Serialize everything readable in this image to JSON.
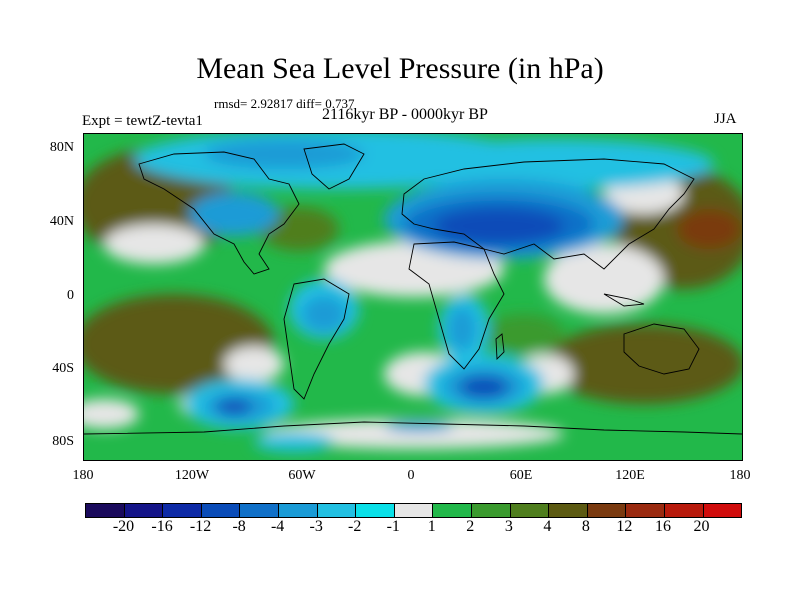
{
  "header": {
    "title": "Mean Sea Level Pressure (in hPa)",
    "stats": "rmsd= 2.92817 diff= 0.737",
    "period": "2116kyr BP - 0000kyr BP",
    "experiment": "Expt = tewtZ-tevta1",
    "season": "JJA"
  },
  "axes": {
    "lat_labels": [
      "80N",
      "40N",
      "0",
      "40S",
      "80S"
    ],
    "lon_labels": [
      "180",
      "120W",
      "60W",
      "0",
      "60E",
      "120E",
      "180"
    ]
  },
  "colorbar": {
    "colors": [
      "#1a0a5c",
      "#141488",
      "#0d2aa6",
      "#0a4cb8",
      "#1070c8",
      "#1a9bd6",
      "#22c0e2",
      "#0ae0e8",
      "#e6e6e6",
      "#22b84a",
      "#3a9a2e",
      "#4f7e1e",
      "#5c5a12",
      "#7a3a10",
      "#9a2a10",
      "#b81a0c",
      "#d00c0c"
    ],
    "labels": [
      "-20",
      "-16",
      "-12",
      "-8",
      "-4",
      "-3",
      "-2",
      "-1",
      "1",
      "2",
      "3",
      "4",
      "8",
      "12",
      "16",
      "20"
    ]
  }
}
